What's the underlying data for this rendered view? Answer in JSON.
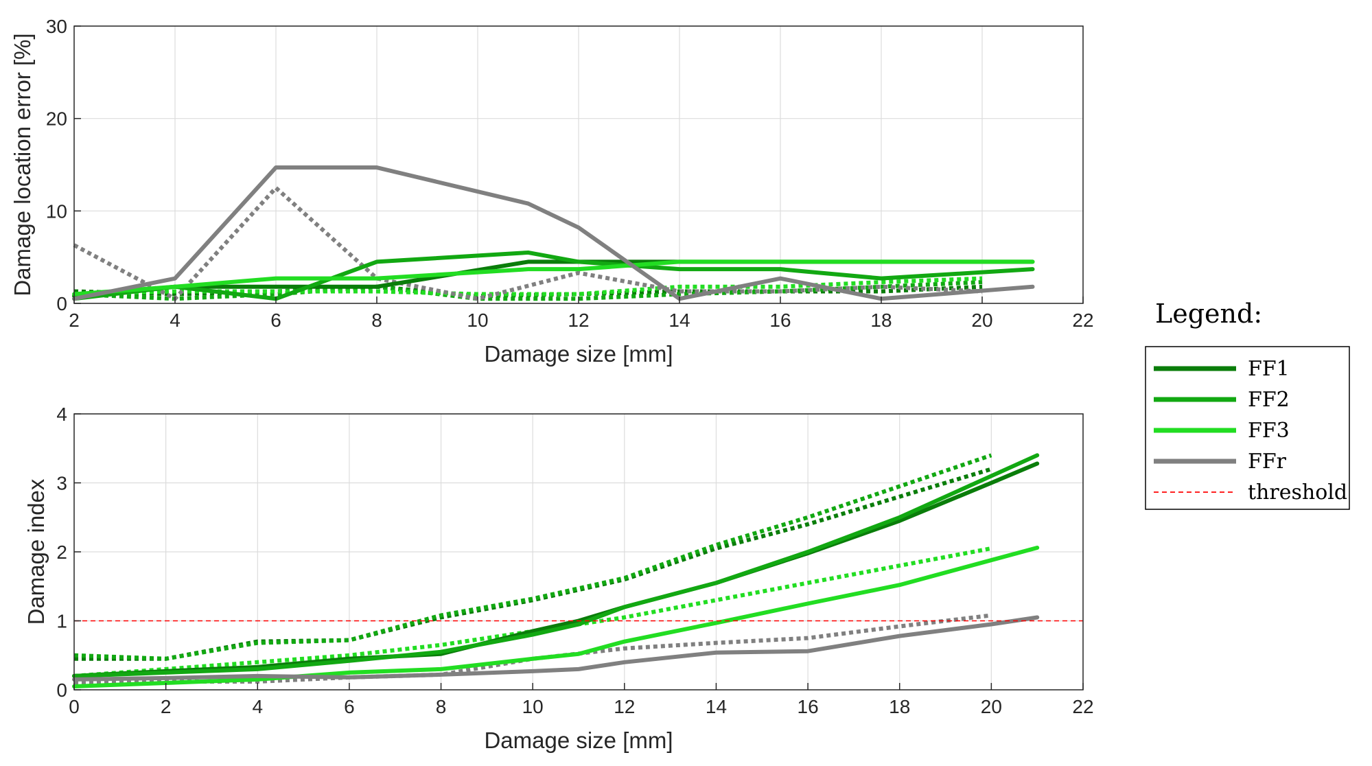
{
  "chart_data": [
    {
      "type": "line",
      "xlabel": "Damage size [mm]",
      "ylabel": "Damage location error [%]",
      "xlim": [
        2,
        22
      ],
      "ylim": [
        0,
        30
      ],
      "xticks": [
        2,
        4,
        6,
        8,
        10,
        12,
        14,
        16,
        18,
        20,
        22
      ],
      "yticks": [
        0,
        10,
        20,
        30
      ],
      "grid": true,
      "series": [
        {
          "name": "FF1",
          "style": "solid",
          "color": "#0a7d0a",
          "x": [
            2,
            4,
            6,
            8,
            11,
            12,
            14,
            16,
            18,
            21
          ],
          "y": [
            0.8,
            1.8,
            1.8,
            1.8,
            4.5,
            4.5,
            4.5,
            4.5,
            4.5,
            4.5
          ]
        },
        {
          "name": "FF2",
          "style": "solid",
          "color": "#12a812",
          "x": [
            2,
            4,
            6,
            8,
            11,
            12,
            14,
            16,
            18,
            21
          ],
          "y": [
            0.5,
            1.8,
            0.5,
            4.5,
            5.5,
            4.5,
            3.7,
            3.7,
            2.7,
            3.7
          ]
        },
        {
          "name": "FF3",
          "style": "solid",
          "color": "#22dd22",
          "x": [
            2,
            4,
            6,
            8,
            11,
            12,
            14,
            16,
            18,
            21
          ],
          "y": [
            1.0,
            1.8,
            2.7,
            2.7,
            3.7,
            3.7,
            4.5,
            4.5,
            4.5,
            4.5
          ]
        },
        {
          "name": "FFr",
          "style": "solid",
          "color": "#808080",
          "x": [
            2,
            4,
            6,
            8,
            11,
            12,
            14,
            16,
            18,
            21
          ],
          "y": [
            0.5,
            2.7,
            14.7,
            14.7,
            10.8,
            8.2,
            0.5,
            2.7,
            0.5,
            1.8
          ]
        },
        {
          "name": "FF1 (dotted)",
          "style": "dotted",
          "color": "#0a7d0a",
          "x": [
            2,
            4,
            6,
            8,
            10,
            12,
            14,
            16,
            18,
            20
          ],
          "y": [
            1.3,
            1.0,
            1.3,
            1.8,
            0.8,
            1.0,
            1.3,
            1.3,
            1.3,
            1.8
          ]
        },
        {
          "name": "FF2 (dotted)",
          "style": "dotted",
          "color": "#12a812",
          "x": [
            2,
            4,
            6,
            8,
            10,
            12,
            14,
            16,
            18,
            20
          ],
          "y": [
            1.0,
            0.5,
            1.0,
            1.8,
            0.5,
            0.5,
            1.0,
            1.3,
            1.8,
            2.3
          ]
        },
        {
          "name": "FF3 (dotted)",
          "style": "dotted",
          "color": "#22dd22",
          "x": [
            2,
            4,
            6,
            8,
            10,
            12,
            14,
            16,
            18,
            20
          ],
          "y": [
            1.0,
            1.3,
            1.3,
            1.3,
            1.0,
            1.0,
            1.8,
            1.8,
            2.3,
            2.7
          ]
        },
        {
          "name": "FFr (dotted)",
          "style": "dotted",
          "color": "#808080",
          "x": [
            2,
            4,
            6,
            8,
            10,
            12,
            14,
            16,
            18,
            20
          ],
          "y": [
            6.3,
            0.5,
            12.5,
            2.7,
            0.5,
            3.3,
            1.3,
            1.3,
            1.8,
            1.3
          ]
        }
      ]
    },
    {
      "type": "line",
      "xlabel": "Damage size [mm]",
      "ylabel": "Damage index",
      "xlim": [
        0,
        22
      ],
      "ylim": [
        0,
        4
      ],
      "xticks": [
        0,
        2,
        4,
        6,
        8,
        10,
        12,
        14,
        16,
        18,
        20,
        22
      ],
      "yticks": [
        0,
        1,
        2,
        3,
        4
      ],
      "grid": true,
      "threshold": 1,
      "series": [
        {
          "name": "FF1",
          "style": "solid",
          "color": "#0a7d0a",
          "x": [
            0,
            2,
            4,
            6,
            8,
            10,
            11,
            12,
            14,
            16,
            18,
            20,
            21
          ],
          "y": [
            0.2,
            0.27,
            0.33,
            0.45,
            0.52,
            0.85,
            1.0,
            1.2,
            1.55,
            1.98,
            2.45,
            3.0,
            3.28
          ]
        },
        {
          "name": "FF2",
          "style": "solid",
          "color": "#12a812",
          "x": [
            0,
            2,
            4,
            6,
            8,
            10,
            11,
            12,
            14,
            16,
            18,
            20,
            21
          ],
          "y": [
            0.2,
            0.25,
            0.3,
            0.42,
            0.55,
            0.8,
            0.95,
            1.2,
            1.55,
            2.0,
            2.5,
            3.1,
            3.4
          ]
        },
        {
          "name": "FF3",
          "style": "solid",
          "color": "#22dd22",
          "x": [
            0,
            2,
            4,
            6,
            8,
            10,
            11,
            12,
            14,
            16,
            18,
            20,
            21
          ],
          "y": [
            0.05,
            0.1,
            0.15,
            0.25,
            0.3,
            0.45,
            0.52,
            0.7,
            0.97,
            1.25,
            1.52,
            1.88,
            2.06
          ]
        },
        {
          "name": "FFr",
          "style": "solid",
          "color": "#808080",
          "x": [
            0,
            2,
            4,
            6,
            8,
            10,
            11,
            12,
            14,
            16,
            18,
            20,
            21
          ],
          "y": [
            0.15,
            0.17,
            0.2,
            0.18,
            0.22,
            0.27,
            0.3,
            0.4,
            0.54,
            0.56,
            0.78,
            0.95,
            1.05
          ]
        },
        {
          "name": "FF1 (dotted)",
          "style": "dotted",
          "color": "#0a7d0a",
          "x": [
            0,
            2,
            4,
            6,
            8,
            10,
            12,
            14,
            16,
            18,
            20
          ],
          "y": [
            0.45,
            0.45,
            0.7,
            0.72,
            1.05,
            1.3,
            1.6,
            2.05,
            2.4,
            2.8,
            3.2
          ]
        },
        {
          "name": "FF2 (dotted)",
          "style": "dotted",
          "color": "#12a812",
          "x": [
            0,
            2,
            4,
            6,
            8,
            10,
            12,
            14,
            16,
            18,
            20
          ],
          "y": [
            0.5,
            0.45,
            0.68,
            0.72,
            1.08,
            1.32,
            1.62,
            2.1,
            2.5,
            2.95,
            3.4
          ]
        },
        {
          "name": "FF3 (dotted)",
          "style": "dotted",
          "color": "#22dd22",
          "x": [
            0,
            2,
            4,
            6,
            8,
            10,
            12,
            14,
            16,
            18,
            20
          ],
          "y": [
            0.2,
            0.3,
            0.4,
            0.5,
            0.65,
            0.85,
            1.05,
            1.3,
            1.55,
            1.8,
            2.05
          ]
        },
        {
          "name": "FFr (dotted)",
          "style": "dotted",
          "color": "#808080",
          "x": [
            0,
            2,
            4,
            6,
            8,
            10,
            12,
            14,
            16,
            18,
            20
          ],
          "y": [
            0.1,
            0.12,
            0.12,
            0.18,
            0.22,
            0.45,
            0.6,
            0.68,
            0.75,
            0.92,
            1.08
          ]
        }
      ]
    }
  ],
  "legend": {
    "title": "Legend:",
    "entries": [
      {
        "label": "FF1",
        "color": "#0a7d0a",
        "style": "solid"
      },
      {
        "label": "FF2",
        "color": "#12a812",
        "style": "solid"
      },
      {
        "label": "FF3",
        "color": "#22dd22",
        "style": "solid"
      },
      {
        "label": "FFr",
        "color": "#808080",
        "style": "solid"
      },
      {
        "label": "threshold",
        "color": "#ff0000",
        "style": "dashed"
      }
    ]
  }
}
